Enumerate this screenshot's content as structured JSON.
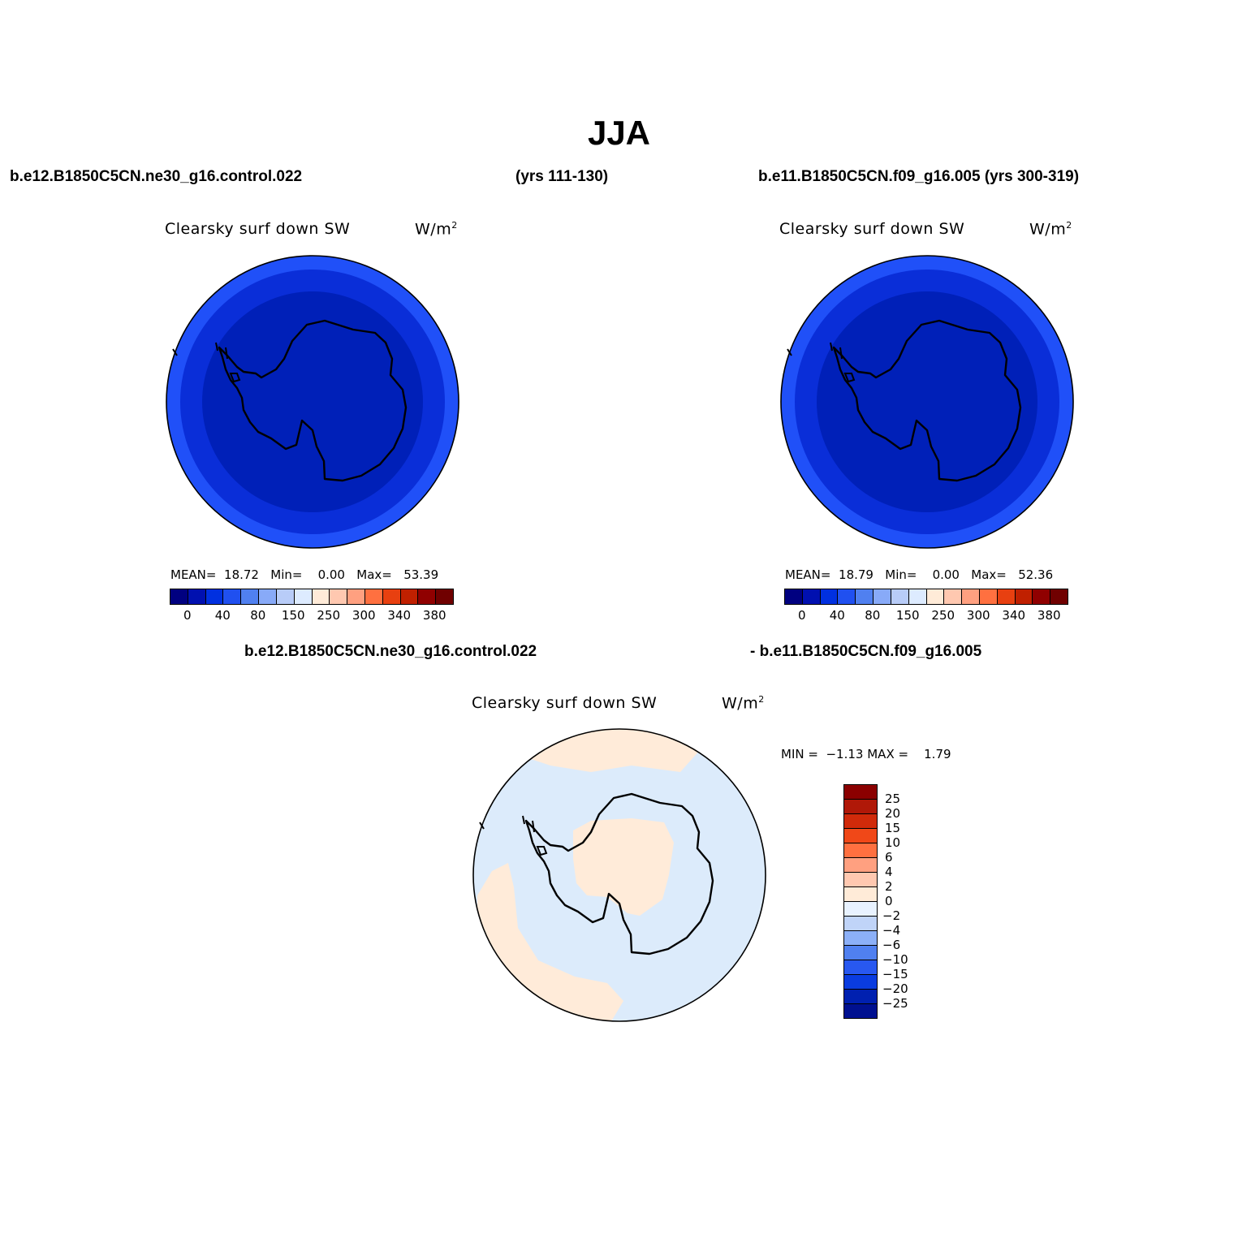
{
  "page": {
    "title": "JJA"
  },
  "header": {
    "left_case": "b.e12.B1850C5CN.ne30_g16.control.022",
    "left_years": "(yrs 111-130)",
    "right_case": "b.e11.B1850C5CN.f09_g16.005 (yrs 300-319)"
  },
  "panels": [
    {
      "variable": "Clearsky surf down SW",
      "units": "W/m",
      "units_sup": "2",
      "mean_label": "MEAN=",
      "mean_value": "18.72",
      "min_label": "Min=",
      "min_value": "0.00",
      "max_label": "Max=",
      "max_value": "53.39"
    },
    {
      "variable": "Clearsky surf down SW",
      "units": "W/m",
      "units_sup": "2",
      "mean_label": "MEAN=",
      "mean_value": "18.79",
      "min_label": "Min=",
      "min_value": "0.00",
      "max_label": "Max=",
      "max_value": "52.36"
    }
  ],
  "main_colorbar": {
    "colors": [
      "#000080",
      "#0010B0",
      "#0030E0",
      "#2050F0",
      "#5080F0",
      "#88AAF8",
      "#B8CCF8",
      "#DDEBFF",
      "#FFEBD8",
      "#FFC8B0",
      "#FFA080",
      "#FF7040",
      "#E84010",
      "#C02000",
      "#900000",
      "#700000"
    ],
    "labels": [
      "0",
      "40",
      "80",
      "150",
      "250",
      "300",
      "340",
      "380"
    ]
  },
  "diff": {
    "title_left": "b.e12.B1850C5CN.ne30_g16.control.022",
    "title_right": "- b.e11.B1850C5CN.f09_g16.005",
    "variable": "Clearsky surf down SW",
    "units": "W/m",
    "units_sup": "2",
    "min_label": "MIN =",
    "min_value": "−1.13",
    "max_label": "MAX =",
    "max_value": "1.79",
    "colorbar": {
      "colors": [
        "#8B0000",
        "#B01808",
        "#D02A0A",
        "#F04818",
        "#FF7040",
        "#FFA080",
        "#FFC8B0",
        "#FFEBD8",
        "#E8F2FF",
        "#C0D4F8",
        "#8CB0F8",
        "#5080F0",
        "#2858F0",
        "#0A3CE0",
        "#0020B0",
        "#001090"
      ],
      "labels": [
        "25",
        "20",
        "15",
        "10",
        "6",
        "4",
        "2",
        "0",
        "−2",
        "−4",
        "−6",
        "−10",
        "−15",
        "−20",
        "−25"
      ]
    }
  },
  "colors": {
    "outer_ring": "#2050F8",
    "middle_ring": "#0A2ED8",
    "inner_disc": "#0020B8",
    "diff_negative": "#DCEBFB",
    "diff_positive": "#FFEBD9"
  }
}
